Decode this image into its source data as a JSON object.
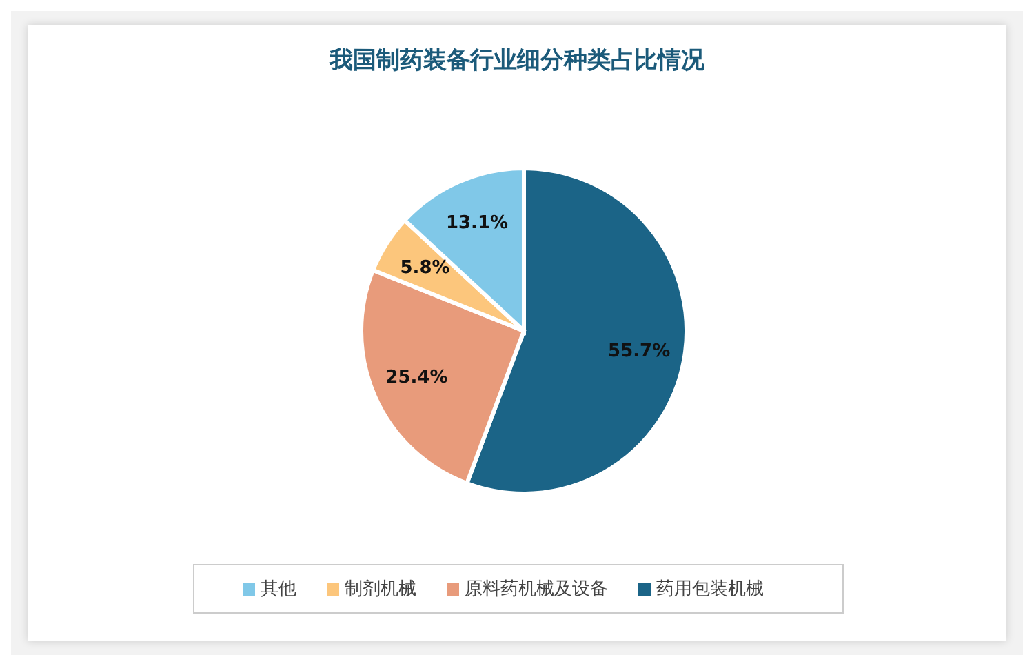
{
  "chart_data": {
    "type": "pie",
    "title": "我国制药装备行业细分种类占比情况",
    "categories": [
      "药用包装机械",
      "原料药机械及设备",
      "制剂机械",
      "其他"
    ],
    "values": [
      55.7,
      25.4,
      5.8,
      13.1
    ],
    "colors": [
      "#1b6487",
      "#e89b7b",
      "#fcc67c",
      "#80c8e8"
    ],
    "value_labels": [
      "55.7%",
      "25.4%",
      "5.8%",
      "13.1%"
    ],
    "legend": "bottom"
  }
}
